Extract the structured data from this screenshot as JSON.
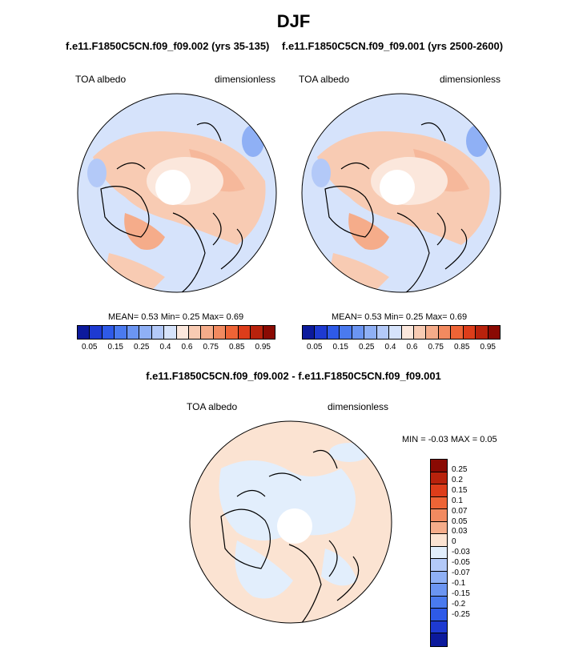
{
  "figure": {
    "title": "DJF",
    "left_subtitle": "f.e11.F1850C5CN.f09_f09.002 (yrs 35-135)",
    "right_subtitle": "f.e11.F1850C5CN.f09_f09.001 (yrs 2500-2600)",
    "diff_subtitle": "f.e11.F1850C5CN.f09_f09.002 - f.e11.F1850C5CN.f09_f09.001"
  },
  "panels": {
    "left": {
      "variable": "TOA albedo",
      "units": "dimensionless",
      "stats": "MEAN=  0.53  Min=  0.25  Max=  0.69",
      "mean": 0.53,
      "min": 0.25,
      "max": 0.69
    },
    "right": {
      "variable": "TOA albedo",
      "units": "dimensionless",
      "stats": "MEAN=  0.53  Min=  0.25  Max=  0.69",
      "mean": 0.53,
      "min": 0.25,
      "max": 0.69
    },
    "diff": {
      "variable": "TOA albedo",
      "units": "dimensionless",
      "stats": "MIN =  -0.03 MAX =   0.05",
      "min": -0.03,
      "max": 0.05
    }
  },
  "colorbar_main": {
    "colors": [
      "#0c1a9c",
      "#1e3ad1",
      "#2e5ae8",
      "#4a7aef",
      "#6b95f2",
      "#8fb0f5",
      "#b3c9f8",
      "#d6e3fb",
      "#fbe7dc",
      "#f8cbb3",
      "#f5ac8a",
      "#f28a60",
      "#ee6436",
      "#dd3d1a",
      "#b8220c",
      "#8a0a03"
    ],
    "ticks": [
      "0.05",
      "0.15",
      "0.25",
      "0.4",
      "0.6",
      "0.75",
      "0.85",
      "0.95"
    ]
  },
  "colorbar_diff": {
    "colors": [
      "#8a0a03",
      "#b8220c",
      "#dd3d1a",
      "#ee6436",
      "#f28a60",
      "#f5ac8a",
      "#fbe3d2",
      "#e2eefc",
      "#b3c9f8",
      "#8fb0f5",
      "#6b95f2",
      "#4a7aef",
      "#2e5ae8",
      "#1e3ad1",
      "#0c1a9c"
    ],
    "ticks": [
      "0.25",
      "0.2",
      "0.15",
      "0.1",
      "0.07",
      "0.05",
      "0.03",
      "0",
      "-0.03",
      "-0.05",
      "-0.07",
      "-0.1",
      "-0.15",
      "-0.2",
      "-0.25"
    ]
  }
}
